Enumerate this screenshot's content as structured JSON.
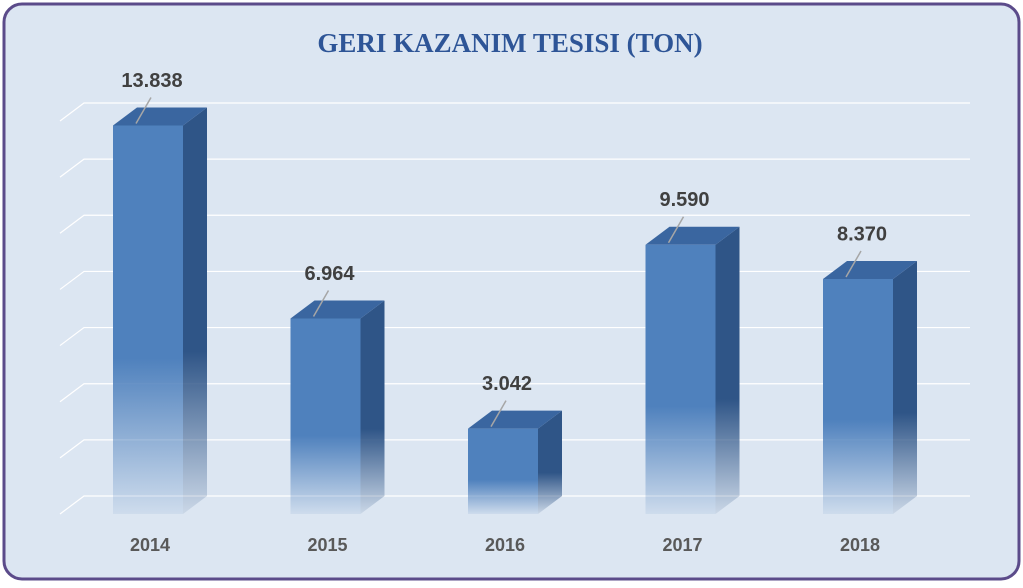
{
  "chart_data": {
    "type": "bar3d",
    "title": "GERI KAZANIM TESISI (TON)",
    "categories": [
      "2014",
      "2015",
      "2016",
      "2017",
      "2018"
    ],
    "values": [
      13838,
      6964,
      3042,
      9590,
      8370
    ],
    "value_labels": [
      "13.838",
      "6.964",
      "3.042",
      "9.590",
      "8.370"
    ],
    "color": "#4f81bd",
    "ylim": [
      0,
      14000
    ],
    "yticks": [
      0,
      2000,
      4000,
      6000,
      8000,
      10000,
      12000,
      14000
    ],
    "grid": true
  }
}
